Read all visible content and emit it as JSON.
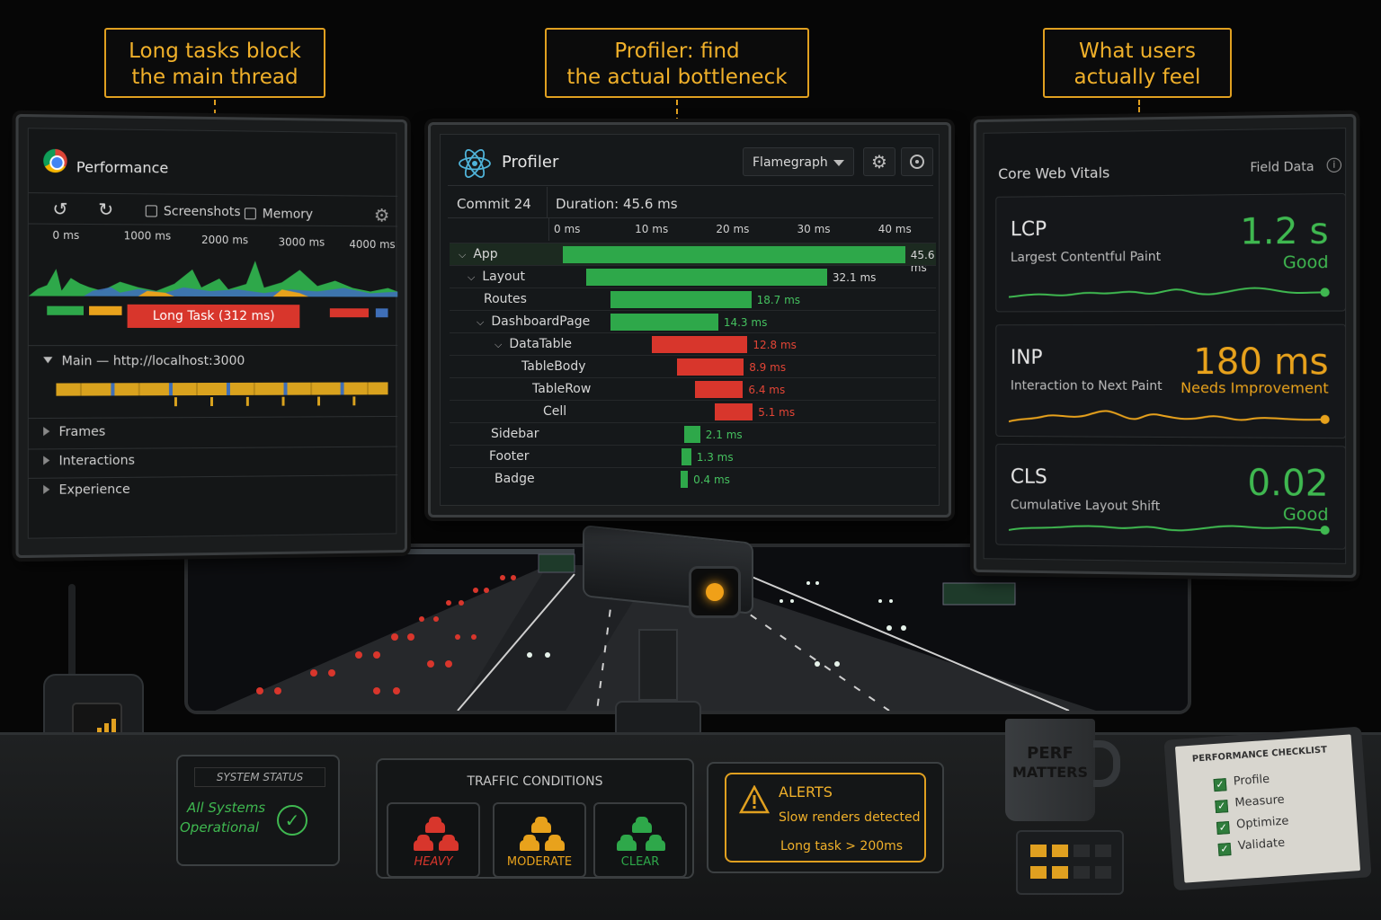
{
  "callouts": {
    "left": {
      "line1": "Long tasks block",
      "line2": "the main thread"
    },
    "center": {
      "line1": "Profiler: find",
      "line2": "the actual bottleneck"
    },
    "right": {
      "line1": "What users",
      "line2": "actually feel"
    }
  },
  "performance": {
    "title": "Performance",
    "screenshots_label": "Screenshots",
    "memory_label": "Memory",
    "ticks": [
      "0 ms",
      "1000 ms",
      "2000 ms",
      "3000 ms",
      "4000 ms"
    ],
    "long_task_label": "Long Task (312 ms)",
    "main_label": "Main — http://localhost:3000",
    "tracks": [
      "Frames",
      "Interactions",
      "Experience"
    ]
  },
  "profiler": {
    "title": "Profiler",
    "view_select": "Flamegraph",
    "commit_label": "Commit 24",
    "duration_label": "Duration: 45.6 ms",
    "axis": [
      "0 ms",
      "10 ms",
      "20 ms",
      "30 ms",
      "40 ms"
    ],
    "rows": [
      {
        "name": "App",
        "value": "45.6 ms",
        "ms": 45.6,
        "status": "good"
      },
      {
        "name": "Layout",
        "value": "32.1 ms",
        "ms": 32.1,
        "status": "good"
      },
      {
        "name": "Routes",
        "value": "18.7 ms",
        "ms": 18.7,
        "status": "good"
      },
      {
        "name": "DashboardPage",
        "value": "14.3 ms",
        "ms": 14.3,
        "status": "good"
      },
      {
        "name": "DataTable",
        "value": "12.8 ms",
        "ms": 12.8,
        "status": "slow"
      },
      {
        "name": "TableBody",
        "value": "8.9 ms",
        "ms": 8.9,
        "status": "slow"
      },
      {
        "name": "TableRow",
        "value": "6.4 ms",
        "ms": 6.4,
        "status": "slow"
      },
      {
        "name": "Cell",
        "value": "5.1 ms",
        "ms": 5.1,
        "status": "slow"
      },
      {
        "name": "Sidebar",
        "value": "2.1 ms",
        "ms": 2.1,
        "status": "good"
      },
      {
        "name": "Footer",
        "value": "1.3 ms",
        "ms": 1.3,
        "status": "good"
      },
      {
        "name": "Badge",
        "value": "0.4 ms",
        "ms": 0.4,
        "status": "good"
      }
    ]
  },
  "vitals": {
    "title": "Core Web Vitals",
    "source": "Field Data",
    "metrics": [
      {
        "abbr": "LCP",
        "desc": "Largest Contentful Paint",
        "value": "1.2 s",
        "status": "Good",
        "color": "#3fb850"
      },
      {
        "abbr": "INP",
        "desc": "Interaction to Next Paint",
        "value": "180 ms",
        "status": "Needs Improvement",
        "color": "#e8a21c"
      },
      {
        "abbr": "CLS",
        "desc": "Cumulative Layout Shift",
        "value": "0.02",
        "status": "Good",
        "color": "#3fb850"
      }
    ]
  },
  "console": {
    "system_status_title": "SYSTEM STATUS",
    "system_status_line1": "All Systems",
    "system_status_line2": "Operational",
    "traffic_title": "TRAFFIC CONDITIONS",
    "traffic": [
      {
        "label": "HEAVY",
        "color": "#d8362c"
      },
      {
        "label": "MODERATE",
        "color": "#e8a21c"
      },
      {
        "label": "CLEAR",
        "color": "#2ea84a"
      }
    ],
    "alerts_title": "ALERTS",
    "alerts": [
      "Slow renders detected",
      "Long task > 200ms"
    ],
    "mug_line1": "PERF",
    "mug_line2": "MATTERS",
    "checklist_title": "PERFORMANCE CHECKLIST",
    "checklist": [
      "Profile",
      "Measure",
      "Optimize",
      "Validate"
    ]
  }
}
